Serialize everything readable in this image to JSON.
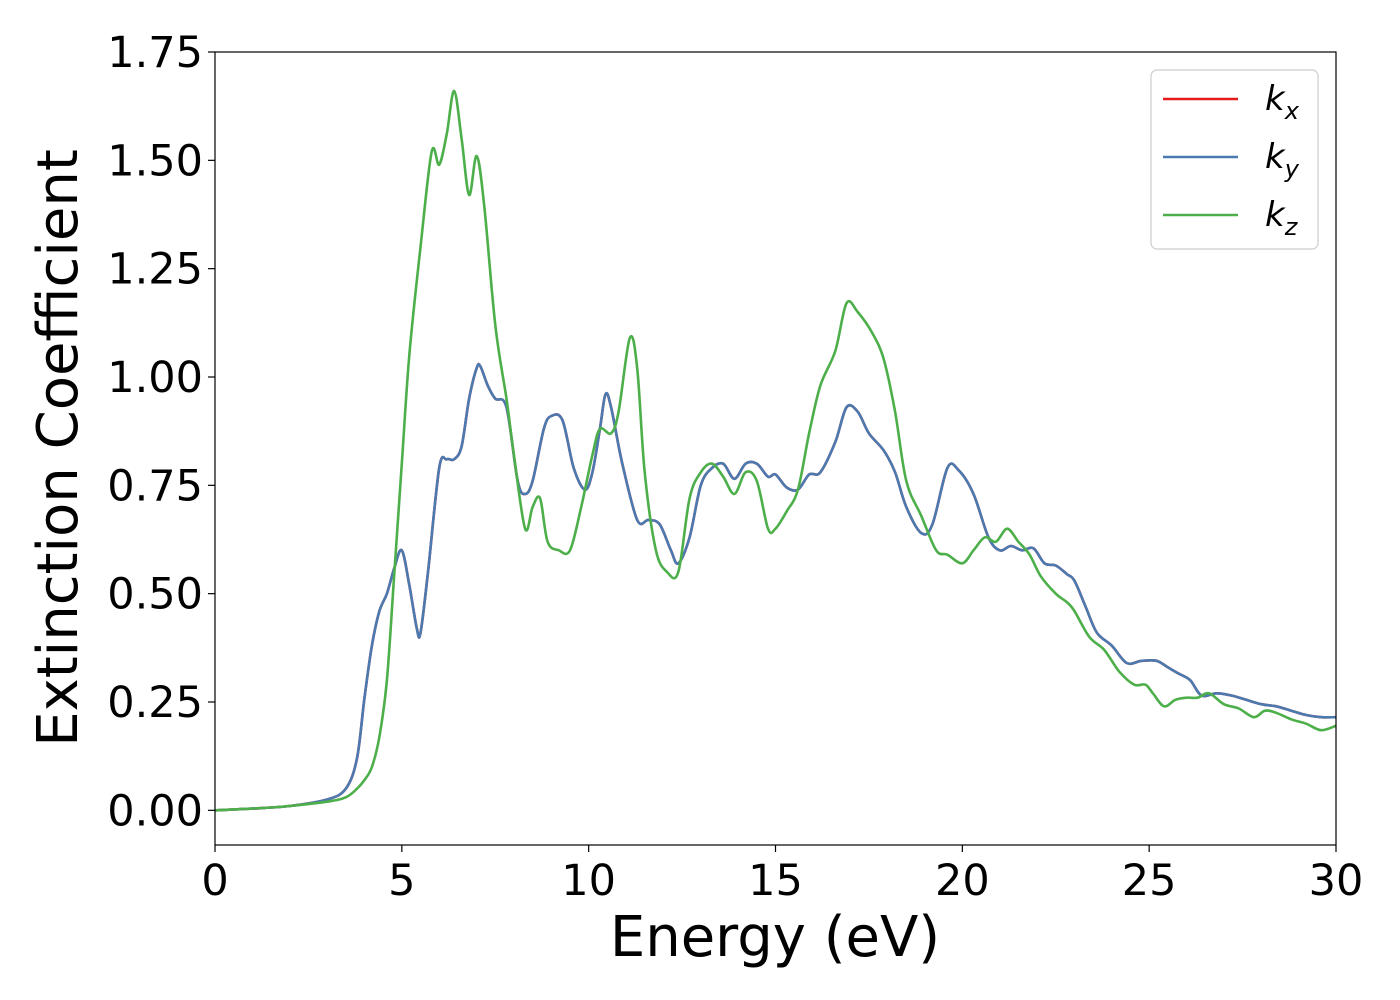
{
  "chart_data": {
    "type": "line",
    "xlabel": "Energy (eV)",
    "ylabel": "Extinction Coefficient",
    "xlim": [
      0,
      30
    ],
    "ylim": [
      -0.08,
      1.75
    ],
    "xticks": [
      0,
      5,
      10,
      15,
      20,
      25,
      30
    ],
    "xtick_labels": [
      "0",
      "5",
      "10",
      "15",
      "20",
      "25",
      "30"
    ],
    "yticks": [
      0,
      0.25,
      0.5,
      0.75,
      1.0,
      1.25,
      1.5,
      1.75
    ],
    "ytick_labels": [
      "0.00",
      "0.25",
      "0.50",
      "0.75",
      "1.00",
      "1.25",
      "1.50",
      "1.75"
    ],
    "grid": false,
    "legend_position": "top-right",
    "series": [
      {
        "name": "k_x",
        "label_main": "k",
        "label_sub": "x",
        "color": "#e41a1c",
        "x": [
          0,
          1,
          2,
          3,
          3.5,
          3.8,
          4.0,
          4.2,
          4.4,
          4.6,
          4.8,
          5.0,
          5.2,
          5.4,
          5.5,
          5.7,
          6.0,
          6.2,
          6.4,
          6.6,
          6.8,
          7.0,
          7.1,
          7.3,
          7.5,
          7.8,
          8.1,
          8.3,
          8.5,
          8.8,
          9.0,
          9.3,
          9.6,
          9.9,
          10.1,
          10.3,
          10.45,
          10.6,
          10.9,
          11.3,
          11.6,
          11.9,
          12.2,
          12.4,
          12.7,
          13.0,
          13.3,
          13.6,
          13.9,
          14.2,
          14.5,
          14.8,
          15.0,
          15.3,
          15.6,
          15.9,
          16.2,
          16.6,
          16.9,
          17.2,
          17.5,
          17.9,
          18.2,
          18.5,
          18.9,
          19.2,
          19.6,
          19.9,
          20.3,
          20.7,
          21.0,
          21.3,
          21.6,
          21.9,
          22.2,
          22.5,
          22.8,
          23.0,
          23.3,
          23.6,
          24.0,
          24.4,
          24.8,
          25.2,
          25.5,
          25.8,
          26.1,
          26.4,
          26.8,
          27.2,
          27.6,
          28.0,
          28.4,
          28.8,
          29.2,
          29.6,
          30.0
        ],
        "y": [
          0.0,
          0.004,
          0.01,
          0.025,
          0.05,
          0.12,
          0.26,
          0.38,
          0.46,
          0.5,
          0.56,
          0.6,
          0.52,
          0.42,
          0.41,
          0.55,
          0.79,
          0.81,
          0.81,
          0.84,
          0.95,
          1.02,
          1.025,
          0.98,
          0.95,
          0.93,
          0.76,
          0.73,
          0.76,
          0.88,
          0.91,
          0.9,
          0.79,
          0.74,
          0.78,
          0.88,
          0.96,
          0.93,
          0.8,
          0.67,
          0.67,
          0.66,
          0.6,
          0.57,
          0.63,
          0.75,
          0.79,
          0.8,
          0.765,
          0.8,
          0.8,
          0.77,
          0.775,
          0.745,
          0.74,
          0.775,
          0.78,
          0.85,
          0.93,
          0.92,
          0.87,
          0.83,
          0.78,
          0.7,
          0.64,
          0.66,
          0.79,
          0.785,
          0.73,
          0.63,
          0.6,
          0.61,
          0.6,
          0.605,
          0.57,
          0.565,
          0.545,
          0.53,
          0.47,
          0.41,
          0.38,
          0.34,
          0.345,
          0.345,
          0.33,
          0.315,
          0.3,
          0.265,
          0.27,
          0.265,
          0.255,
          0.245,
          0.24,
          0.23,
          0.22,
          0.215,
          0.215
        ]
      },
      {
        "name": "k_y",
        "label_main": "k",
        "label_sub": "y",
        "color": "#4a7ab0",
        "x": [
          0,
          1,
          2,
          3,
          3.5,
          3.8,
          4.0,
          4.2,
          4.4,
          4.6,
          4.8,
          5.0,
          5.2,
          5.4,
          5.5,
          5.7,
          6.0,
          6.2,
          6.4,
          6.6,
          6.8,
          7.0,
          7.1,
          7.3,
          7.5,
          7.8,
          8.1,
          8.3,
          8.5,
          8.8,
          9.0,
          9.3,
          9.6,
          9.9,
          10.1,
          10.3,
          10.45,
          10.6,
          10.9,
          11.3,
          11.6,
          11.9,
          12.2,
          12.4,
          12.7,
          13.0,
          13.3,
          13.6,
          13.9,
          14.2,
          14.5,
          14.8,
          15.0,
          15.3,
          15.6,
          15.9,
          16.2,
          16.6,
          16.9,
          17.2,
          17.5,
          17.9,
          18.2,
          18.5,
          18.9,
          19.2,
          19.6,
          19.9,
          20.3,
          20.7,
          21.0,
          21.3,
          21.6,
          21.9,
          22.2,
          22.5,
          22.8,
          23.0,
          23.3,
          23.6,
          24.0,
          24.4,
          24.8,
          25.2,
          25.5,
          25.8,
          26.1,
          26.4,
          26.8,
          27.2,
          27.6,
          28.0,
          28.4,
          28.8,
          29.2,
          29.6,
          30.0
        ],
        "y": [
          0.0,
          0.004,
          0.01,
          0.025,
          0.05,
          0.12,
          0.26,
          0.38,
          0.46,
          0.5,
          0.56,
          0.6,
          0.52,
          0.42,
          0.41,
          0.55,
          0.79,
          0.81,
          0.81,
          0.84,
          0.95,
          1.02,
          1.025,
          0.98,
          0.95,
          0.93,
          0.76,
          0.73,
          0.76,
          0.88,
          0.91,
          0.9,
          0.79,
          0.74,
          0.78,
          0.88,
          0.96,
          0.93,
          0.8,
          0.67,
          0.67,
          0.66,
          0.6,
          0.57,
          0.63,
          0.75,
          0.79,
          0.8,
          0.765,
          0.8,
          0.8,
          0.77,
          0.775,
          0.745,
          0.74,
          0.775,
          0.78,
          0.85,
          0.93,
          0.92,
          0.87,
          0.83,
          0.78,
          0.7,
          0.64,
          0.66,
          0.79,
          0.785,
          0.73,
          0.63,
          0.6,
          0.61,
          0.6,
          0.605,
          0.57,
          0.565,
          0.545,
          0.53,
          0.47,
          0.41,
          0.38,
          0.34,
          0.345,
          0.345,
          0.33,
          0.315,
          0.3,
          0.265,
          0.27,
          0.265,
          0.255,
          0.245,
          0.24,
          0.23,
          0.22,
          0.215,
          0.215
        ]
      },
      {
        "name": "k_z",
        "label_main": "k",
        "label_sub": "z",
        "color": "#4daf4a",
        "x": [
          0,
          1,
          2,
          3,
          3.5,
          3.8,
          4.0,
          4.2,
          4.4,
          4.6,
          4.8,
          5.0,
          5.2,
          5.5,
          5.8,
          6.0,
          6.2,
          6.4,
          6.6,
          6.8,
          7.0,
          7.2,
          7.5,
          7.8,
          8.0,
          8.3,
          8.5,
          8.7,
          8.9,
          9.2,
          9.5,
          9.8,
          10.1,
          10.3,
          10.6,
          10.8,
          11.1,
          11.3,
          11.5,
          11.8,
          12.1,
          12.4,
          12.7,
          13.0,
          13.3,
          13.6,
          13.9,
          14.2,
          14.5,
          14.8,
          15.0,
          15.3,
          15.6,
          15.9,
          16.2,
          16.6,
          16.9,
          17.2,
          17.6,
          17.9,
          18.2,
          18.5,
          18.9,
          19.3,
          19.6,
          20.0,
          20.3,
          20.6,
          20.9,
          21.2,
          21.5,
          21.8,
          22.1,
          22.5,
          22.8,
          23.0,
          23.4,
          23.8,
          24.2,
          24.6,
          24.9,
          25.1,
          25.4,
          25.7,
          26.0,
          26.3,
          26.6,
          27.0,
          27.4,
          27.8,
          28.1,
          28.4,
          28.8,
          29.2,
          29.6,
          30.0
        ],
        "y": [
          0.0,
          0.004,
          0.01,
          0.02,
          0.03,
          0.05,
          0.07,
          0.1,
          0.17,
          0.3,
          0.55,
          0.8,
          1.05,
          1.3,
          1.52,
          1.49,
          1.56,
          1.66,
          1.55,
          1.42,
          1.51,
          1.4,
          1.12,
          0.95,
          0.82,
          0.65,
          0.7,
          0.72,
          0.62,
          0.6,
          0.6,
          0.7,
          0.82,
          0.88,
          0.87,
          0.92,
          1.09,
          1.02,
          0.78,
          0.6,
          0.55,
          0.55,
          0.72,
          0.78,
          0.8,
          0.77,
          0.73,
          0.78,
          0.76,
          0.65,
          0.65,
          0.69,
          0.74,
          0.87,
          0.98,
          1.06,
          1.17,
          1.15,
          1.1,
          1.04,
          0.92,
          0.76,
          0.68,
          0.6,
          0.59,
          0.57,
          0.6,
          0.63,
          0.62,
          0.65,
          0.62,
          0.59,
          0.54,
          0.5,
          0.48,
          0.46,
          0.4,
          0.37,
          0.32,
          0.29,
          0.29,
          0.27,
          0.24,
          0.255,
          0.26,
          0.26,
          0.27,
          0.245,
          0.235,
          0.215,
          0.23,
          0.225,
          0.21,
          0.2,
          0.185,
          0.195
        ]
      }
    ]
  }
}
